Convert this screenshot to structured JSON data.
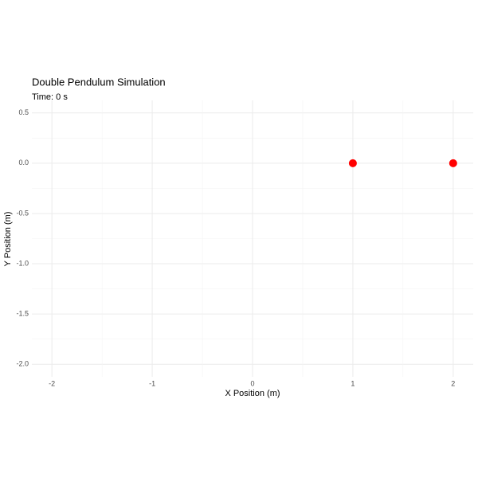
{
  "chart_data": {
    "type": "scatter",
    "title": "Double Pendulum Simulation",
    "subtitle": "Time: 0 s",
    "x_label": "X Position (m)",
    "y_label": "Y Position (m)",
    "x": [
      1,
      2
    ],
    "values": [
      0,
      0
    ],
    "color": "#ff0000",
    "xlim": [
      -2.2,
      2.2
    ],
    "ylim": [
      -2.125,
      0.625
    ],
    "xticks": [
      -2,
      -1,
      0,
      1,
      2
    ],
    "yticks": [
      0.5,
      {
        "value": 0,
        "label": "0.0"
      },
      -0.5,
      {
        "value": -1,
        "label": "-1.0"
      },
      -1.5,
      {
        "value": -2,
        "label": "-2.0"
      }
    ],
    "grid": true,
    "minor_grid": true
  }
}
